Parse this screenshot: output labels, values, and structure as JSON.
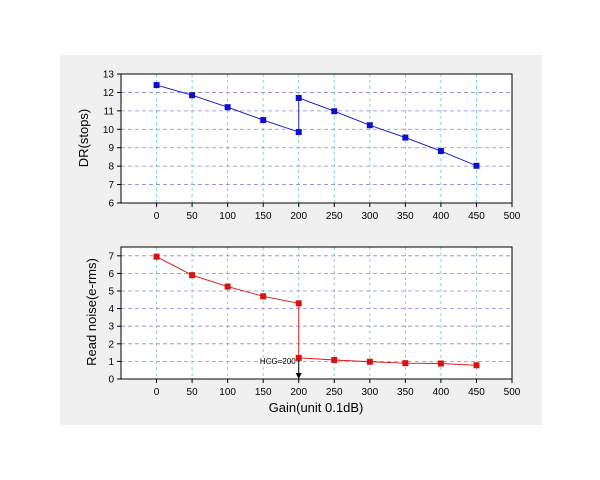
{
  "figure": {
    "background": "#f0f0f0"
  },
  "chart_data": [
    {
      "type": "line",
      "xlabel": "",
      "ylabel": "DR(stops)",
      "xlim": [
        -50,
        500
      ],
      "ylim": [
        6,
        13
      ],
      "xticks": [
        0,
        50,
        100,
        150,
        200,
        250,
        300,
        350,
        400,
        450,
        500
      ],
      "yticks": [
        6,
        7,
        8,
        9,
        10,
        11,
        12,
        13
      ],
      "grid": true,
      "color": "#1010cc",
      "marker": "square",
      "series": [
        {
          "x": [
            0,
            50,
            100,
            150,
            200,
            200,
            250,
            300,
            350,
            400,
            450
          ],
          "y": [
            12.4,
            11.85,
            11.2,
            10.5,
            9.85,
            11.7,
            10.98,
            10.22,
            9.55,
            8.82,
            8.02
          ]
        }
      ]
    },
    {
      "type": "line",
      "xlabel": "Gain(unit 0.1dB)",
      "ylabel": "Read noise(e-rms)",
      "xlim": [
        -50,
        500
      ],
      "ylim": [
        0,
        7.5
      ],
      "xticks": [
        0,
        50,
        100,
        150,
        200,
        250,
        300,
        350,
        400,
        450,
        500
      ],
      "yticks": [
        0,
        1,
        2,
        3,
        4,
        5,
        6,
        7
      ],
      "grid": true,
      "color": "#dd1010",
      "marker": "square",
      "series": [
        {
          "x": [
            0,
            50,
            100,
            150,
            200,
            200,
            250,
            300,
            350,
            400,
            450
          ],
          "y": [
            6.95,
            5.9,
            5.25,
            4.7,
            4.3,
            1.2,
            1.08,
            0.98,
            0.9,
            0.88,
            0.78
          ]
        }
      ],
      "annotations": [
        {
          "text": "HCG=200",
          "x": 200,
          "y": 0.75
        }
      ]
    }
  ]
}
